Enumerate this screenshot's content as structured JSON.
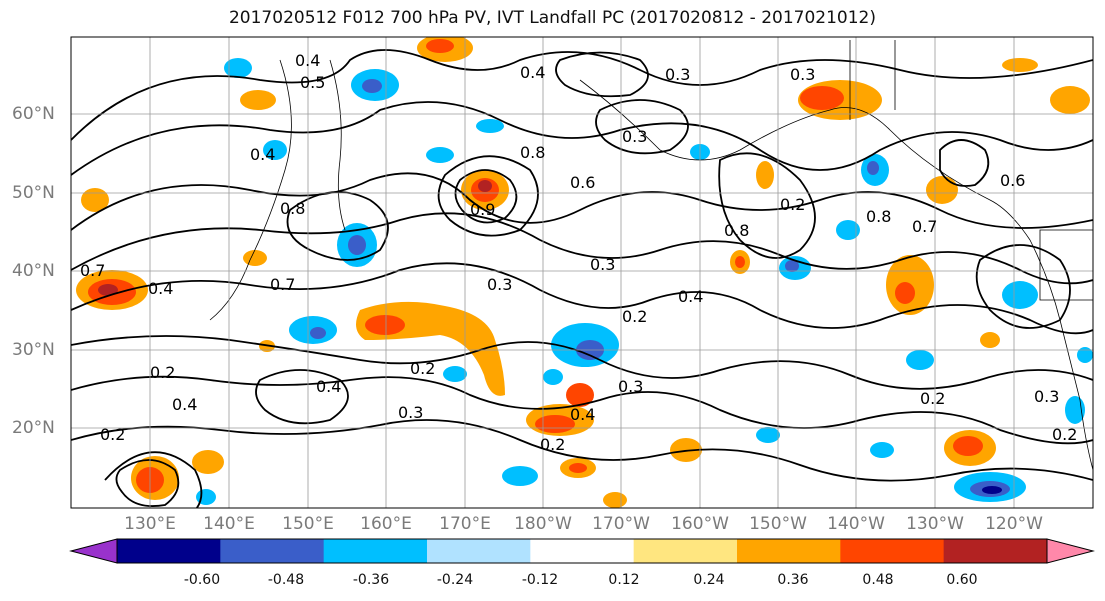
{
  "title": "2017020512 F012 700 hPa PV, IVT Landfall PC (2017020812 - 2017021012)",
  "lon_labels": [
    "130°E",
    "140°E",
    "150°E",
    "160°E",
    "170°E",
    "180°W",
    "170°W",
    "160°W",
    "150°W",
    "140°W",
    "130°W",
    "120°W"
  ],
  "lat_labels": [
    "60°N",
    "50°N",
    "40°N",
    "30°N",
    "20°N"
  ],
  "colorbar": {
    "ticks": [
      "-0.60",
      "-0.48",
      "-0.36",
      "-0.24",
      "-0.12",
      "0.12",
      "0.24",
      "0.36",
      "0.48",
      "0.60"
    ],
    "colors": [
      "#9932cc",
      "#00008b",
      "#3a5ec9",
      "#00bfff",
      "#b0e2ff",
      "#ffffff",
      "#ffe680",
      "#ffa500",
      "#ff4500",
      "#b22222",
      "#ff88aa"
    ]
  },
  "contour_labels": [
    "0.4",
    "0.5",
    "0.3",
    "0.4",
    "0.3",
    "0.6",
    "0.3",
    "0.8",
    "0.9",
    "0.4",
    "0.8",
    "0.7",
    "0.2",
    "0.8",
    "0.8",
    "0.7",
    "0.6",
    "0.4",
    "0.7",
    "0.4",
    "0.3",
    "0.3",
    "0.2",
    "0.2",
    "0.4",
    "0.2",
    "0.3",
    "0.4",
    "0.3",
    "0.2",
    "0.2",
    "0.4",
    "0.2",
    "0.3",
    "0.2"
  ]
}
